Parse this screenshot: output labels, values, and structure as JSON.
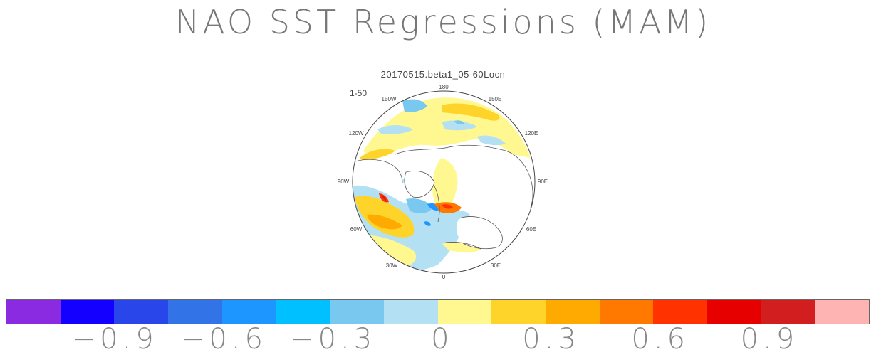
{
  "title": "NAO SST Regressions (MAM)",
  "subtitle": "20170515.beta1_05-60Locn",
  "panel_label": "1-50",
  "map": {
    "projection": "north-polar-stereographic",
    "longitude_labels": [
      "180",
      "150E",
      "120E",
      "90E",
      "60E",
      "30E",
      "0",
      "30W",
      "60W",
      "90W",
      "120W",
      "150W"
    ]
  },
  "colorbar": {
    "colors": [
      "#8a2be2",
      "#1400ff",
      "#2846ea",
      "#3273e8",
      "#1e96ff",
      "#00c0ff",
      "#78c8f0",
      "#b4e0f4",
      "#fff890",
      "#ffd42a",
      "#ffaa00",
      "#ff7800",
      "#ff3200",
      "#e60000",
      "#d21e1e",
      "#ffb4b4"
    ],
    "labels": [
      "−0.9",
      "−0.6",
      "−0.3",
      "0",
      "0.3",
      "0.6",
      "0.9"
    ]
  }
}
